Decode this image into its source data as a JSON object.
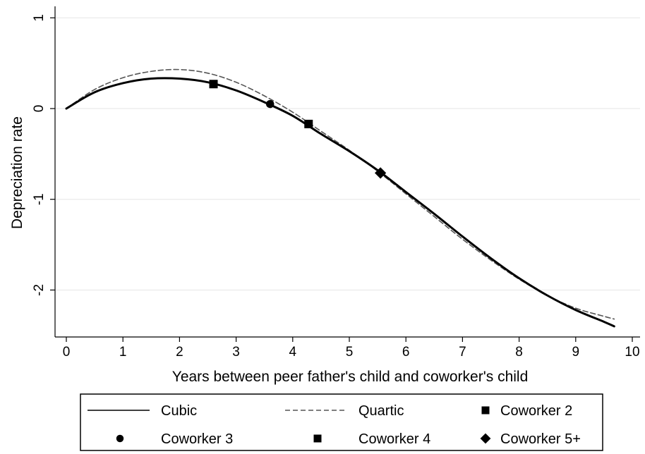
{
  "chart_data": {
    "type": "line",
    "xlabel": "Years between peer father's child and coworker's child",
    "ylabel": "Depreciation rate",
    "xlim": [
      -0.2,
      10.1
    ],
    "ylim": [
      -2.5,
      1.1
    ],
    "xticks": [
      "0",
      "1",
      "2",
      "3",
      "4",
      "5",
      "6",
      "7",
      "8",
      "9",
      "10"
    ],
    "yticks": [
      "1",
      "0",
      "-1",
      "-2"
    ],
    "grid": "horizontal",
    "legend_position": "bottom",
    "series": [
      {
        "name": "Cubic",
        "style": "solid",
        "color": "#000000",
        "x": [
          0,
          0.5,
          1,
          1.5,
          2,
          2.5,
          3,
          3.5,
          4,
          4.5,
          5,
          5.5,
          6,
          6.5,
          7,
          7.5,
          8,
          8.5,
          9,
          9.5,
          9.68
        ],
        "y": [
          0.0,
          0.18,
          0.28,
          0.33,
          0.33,
          0.29,
          0.2,
          0.07,
          -0.08,
          -0.28,
          -0.47,
          -0.68,
          -0.92,
          -1.16,
          -1.41,
          -1.65,
          -1.87,
          -2.06,
          -2.22,
          -2.35,
          -2.4
        ]
      },
      {
        "name": "Quartic",
        "style": "dashed",
        "color": "#555555",
        "x": [
          0,
          0.5,
          1,
          1.5,
          2,
          2.5,
          3,
          3.5,
          4,
          4.5,
          5,
          5.5,
          6,
          6.5,
          7,
          7.5,
          8,
          8.5,
          9,
          9.5,
          9.68
        ],
        "y": [
          0.0,
          0.21,
          0.34,
          0.41,
          0.43,
          0.39,
          0.29,
          0.14,
          -0.04,
          -0.25,
          -0.46,
          -0.69,
          -0.94,
          -1.19,
          -1.44,
          -1.67,
          -1.88,
          -2.06,
          -2.2,
          -2.29,
          -2.32
        ]
      },
      {
        "name": "Coworker 2",
        "marker": "square",
        "x": [
          2.6
        ],
        "y": [
          0.27
        ]
      },
      {
        "name": "Coworker 3",
        "marker": "circle",
        "x": [
          3.6
        ],
        "y": [
          0.05
        ]
      },
      {
        "name": "Coworker 4",
        "marker": "square",
        "x": [
          4.28
        ],
        "y": [
          -0.17
        ]
      },
      {
        "name": "Coworker 5+",
        "marker": "diamond",
        "x": [
          5.55
        ],
        "y": [
          -0.71
        ]
      }
    ]
  }
}
